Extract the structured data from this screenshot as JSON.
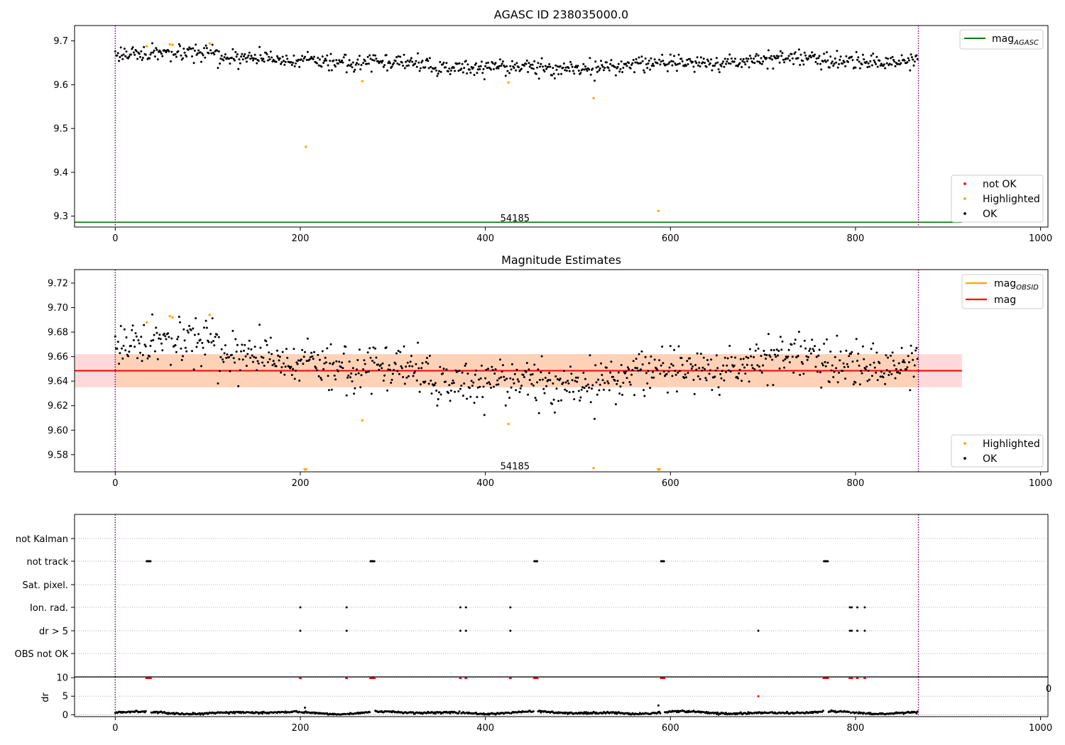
{
  "chart_data": [
    {
      "type": "scatter",
      "title": "AGASC ID 238035000.0",
      "xlim": [
        -44,
        1008
      ],
      "ylim": [
        9.275,
        9.735
      ],
      "xticks": [
        0,
        200,
        400,
        600,
        800,
        1000
      ],
      "yticks": [
        9.3,
        9.4,
        9.5,
        9.6,
        9.7
      ],
      "ytick_labels": [
        "9.3",
        "9.4",
        "9.5",
        "9.6",
        "9.7"
      ],
      "vlines": [
        0,
        868
      ],
      "vline_color": "#800080",
      "hline": {
        "y": 9.286,
        "x": [
          -44,
          915
        ],
        "color": "#008000"
      },
      "annotation": {
        "text": "54185",
        "x": 432,
        "y": 9.296
      },
      "ok_series": {
        "name": "OK",
        "color": "#000000",
        "n": 868,
        "range": [
          0,
          867
        ],
        "mean": 9.648,
        "spread": 0.016
      },
      "highlighted": {
        "name": "Highlighted",
        "color": "#ffa500",
        "x": [
          34,
          59,
          62,
          102,
          206,
          267,
          425,
          517,
          587
        ],
        "y": [
          9.688,
          9.692,
          9.691,
          9.694,
          9.458,
          9.608,
          9.605,
          9.569,
          9.312
        ]
      },
      "not_ok": {
        "name": "not OK",
        "color": "#ff0000",
        "x": [],
        "y": []
      },
      "legend_lines": [
        {
          "label": "mag",
          "sub": "AGASC",
          "color": "#008000"
        }
      ],
      "legend_markers": [
        {
          "label": "not OK",
          "color": "#ff0000"
        },
        {
          "label": "Highlighted",
          "color": "#ffa500"
        },
        {
          "label": "OK",
          "color": "#000000"
        }
      ]
    },
    {
      "type": "scatter",
      "title": "Magnitude Estimates",
      "xlim": [
        -44,
        1008
      ],
      "ylim": [
        9.566,
        9.731
      ],
      "xticks": [
        0,
        200,
        400,
        600,
        800,
        1000
      ],
      "yticks": [
        9.58,
        9.6,
        9.62,
        9.64,
        9.66,
        9.68,
        9.7,
        9.72
      ],
      "ytick_labels": [
        "9.58",
        "9.60",
        "9.62",
        "9.64",
        "9.66",
        "9.68",
        "9.70",
        "9.72"
      ],
      "vlines": [
        0,
        868
      ],
      "mag_line": {
        "y": 9.6485,
        "x": [
          -44,
          915
        ],
        "color": "#ff0000"
      },
      "band": {
        "y": [
          9.635,
          9.662
        ],
        "x": [
          -44,
          915
        ],
        "color": "#ffd9d9",
        "inner_color": "#ffd2b8"
      },
      "annotation": {
        "text": "54185",
        "x": 432,
        "y": 9.571
      },
      "highlighted": {
        "x": [
          34,
          59,
          62,
          102,
          267,
          425,
          517
        ],
        "y": [
          9.688,
          9.693,
          9.692,
          9.694,
          9.608,
          9.605,
          9.569
        ]
      },
      "highlighted_clipped": {
        "x": [
          205,
          206,
          587,
          588
        ]
      },
      "legend_lines": [
        {
          "label": "mag",
          "sub": "OBSID",
          "color": "#ffa500"
        },
        {
          "label": "mag",
          "sub": "",
          "color": "#ff0000"
        }
      ],
      "legend_markers": [
        {
          "label": "Highlighted",
          "color": "#ffa500"
        },
        {
          "label": "OK",
          "color": "#000000"
        }
      ]
    },
    {
      "type": "scatter",
      "categories": [
        "not Kalman",
        "not track",
        "Sat. pixel.",
        "Ion. rad.",
        "dr > 5",
        "OBS not OK"
      ],
      "xlim": [
        -44,
        1008
      ],
      "vlines": [
        0,
        868
      ],
      "flags": {
        "not track": [
          34,
          35,
          36,
          37,
          38,
          276,
          277,
          278,
          279,
          280,
          453,
          454,
          455,
          456,
          590,
          591,
          592,
          593,
          766,
          767,
          768,
          769,
          770
        ],
        "Ion. rad.": [
          200,
          250,
          373,
          379,
          427,
          794,
          796,
          802,
          810
        ],
        "dr > 5": [
          200,
          250,
          373,
          379,
          427,
          695,
          794,
          796,
          802,
          810
        ]
      }
    },
    {
      "type": "scatter",
      "ylabel": "dr",
      "xlim": [
        -44,
        1008
      ],
      "ylim": [
        -0.5,
        10.2
      ],
      "xticks": [
        0,
        200,
        400,
        600,
        800,
        1000
      ],
      "yticks": [
        0,
        5,
        10
      ],
      "ytick_labels": [
        "0",
        "5",
        "10"
      ],
      "vlines": [
        0,
        868
      ],
      "outliers": {
        "x": [
          205,
          587,
          695
        ],
        "y": [
          1.9,
          2.5,
          5.0
        ]
      },
      "clipped_x": [
        34,
        35,
        36,
        37,
        38,
        200,
        250,
        276,
        277,
        278,
        279,
        280,
        373,
        379,
        427,
        453,
        454,
        455,
        456,
        590,
        591,
        592,
        593,
        766,
        767,
        768,
        769,
        770,
        794,
        796,
        802,
        810
      ]
    }
  ]
}
